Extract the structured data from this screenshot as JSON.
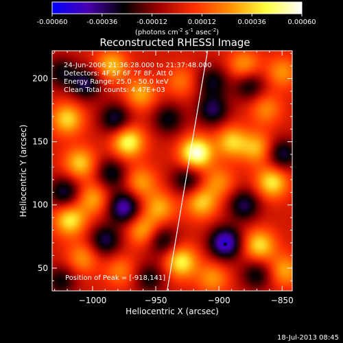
{
  "colorbar": {
    "tick_labels": [
      "-0.00060",
      "-0.00036",
      "-0.00012",
      "0.00012",
      "0.00036",
      "0.00060"
    ],
    "vmin": -0.0006,
    "vmax": 0.0006,
    "label_prefix": "(photons cm",
    "label_exp1": "-2",
    "label_mid": " s",
    "label_exp2": "-1",
    "label_mid2": " asec",
    "label_exp3": "-2",
    "label_suffix": ")",
    "colors": [
      "#0000ff",
      "#4a00b0",
      "#000000",
      "#a00000",
      "#ff3000",
      "#ff9000",
      "#ffff40",
      "#ffffff"
    ]
  },
  "chart_data": {
    "type": "heatmap",
    "title": "Reconstructed RHESSI Image",
    "xlabel": "Heliocentric X (arcsec)",
    "ylabel": "Heliocentric Y (arcsec)",
    "xlim": [
      -1032,
      -842
    ],
    "ylim": [
      32,
      222
    ],
    "x_ticks": [
      -1000,
      -950,
      -900,
      -850
    ],
    "x_tick_labels": [
      "−1000",
      "−950",
      "−900",
      "−850"
    ],
    "y_ticks": [
      50,
      100,
      150,
      200
    ],
    "y_tick_labels": [
      "50",
      "100",
      "150",
      "200"
    ],
    "annotations": [
      "24-Jun-2006 21:36:28.000 to 21:37:48.000",
      "Detectors: 4F 5F 6F 7F 8F, Att 0",
      "Energy Range: 25.0 - 50.0 keV",
      "Clean     Total counts: 4.47E+03"
    ],
    "peak_label": "Position of Peak = [-918,141]",
    "peak": [
      -918,
      141
    ],
    "limb_line": [
      [
        -941,
        32
      ],
      [
        -909,
        222
      ]
    ],
    "sources": [
      {
        "x": -918,
        "y": 141,
        "v": 0.0006
      },
      {
        "x": -972,
        "y": 150,
        "v": 0.00048
      },
      {
        "x": -1020,
        "y": 168,
        "v": 0.00038
      },
      {
        "x": -1010,
        "y": 133,
        "v": 0.00036
      },
      {
        "x": -962,
        "y": 188,
        "v": 0.0003
      },
      {
        "x": -985,
        "y": 210,
        "v": 0.00034
      },
      {
        "x": -930,
        "y": 198,
        "v": 0.0002
      },
      {
        "x": -890,
        "y": 150,
        "v": 0.00036
      },
      {
        "x": -870,
        "y": 145,
        "v": 0.00032
      },
      {
        "x": -858,
        "y": 118,
        "v": 0.00042
      },
      {
        "x": -880,
        "y": 210,
        "v": 0.0003
      },
      {
        "x": -863,
        "y": 176,
        "v": 0.00024
      },
      {
        "x": -1000,
        "y": 105,
        "v": 0.0003
      },
      {
        "x": -1018,
        "y": 88,
        "v": 0.00042
      },
      {
        "x": -962,
        "y": 118,
        "v": 0.00028
      },
      {
        "x": -947,
        "y": 98,
        "v": 0.0003
      },
      {
        "x": -960,
        "y": 80,
        "v": 0.00032
      },
      {
        "x": -914,
        "y": 102,
        "v": 0.00036
      },
      {
        "x": -900,
        "y": 118,
        "v": 0.00024
      },
      {
        "x": -1008,
        "y": 58,
        "v": 0.00026
      },
      {
        "x": -978,
        "y": 48,
        "v": 0.00022
      },
      {
        "x": -930,
        "y": 55,
        "v": 0.00044
      },
      {
        "x": -905,
        "y": 42,
        "v": 0.00026
      },
      {
        "x": -868,
        "y": 68,
        "v": 0.0004
      },
      {
        "x": -848,
        "y": 48,
        "v": 0.0003
      },
      {
        "x": -850,
        "y": 205,
        "v": 0.00026
      },
      {
        "x": -1005,
        "y": 196,
        "v": -0.00034
      },
      {
        "x": -1025,
        "y": 205,
        "v": -0.00026
      },
      {
        "x": -982,
        "y": 168,
        "v": -0.00034
      },
      {
        "x": -940,
        "y": 168,
        "v": -0.00028
      },
      {
        "x": -905,
        "y": 175,
        "v": -0.00034
      },
      {
        "x": -905,
        "y": 198,
        "v": -0.00028
      },
      {
        "x": -876,
        "y": 195,
        "v": -0.0003
      },
      {
        "x": -850,
        "y": 140,
        "v": -0.00034
      },
      {
        "x": -1022,
        "y": 110,
        "v": -0.00034
      },
      {
        "x": -985,
        "y": 125,
        "v": -0.0003
      },
      {
        "x": -975,
        "y": 98,
        "v": -0.00046
      },
      {
        "x": -925,
        "y": 120,
        "v": -0.0003
      },
      {
        "x": -880,
        "y": 100,
        "v": -0.00034
      },
      {
        "x": -990,
        "y": 72,
        "v": -0.00034
      },
      {
        "x": -945,
        "y": 72,
        "v": -0.0003
      },
      {
        "x": -895,
        "y": 70,
        "v": -0.00052
      },
      {
        "x": -1025,
        "y": 40,
        "v": -0.00026
      },
      {
        "x": -955,
        "y": 42,
        "v": -0.00026
      },
      {
        "x": -870,
        "y": 45,
        "v": -0.00028
      }
    ]
  },
  "footer": {
    "timestamp": "18-Jul-2013 08:45"
  }
}
